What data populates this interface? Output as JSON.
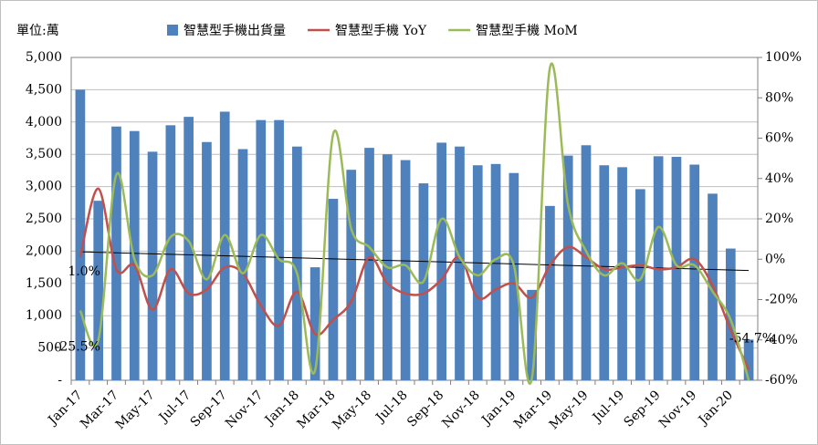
{
  "chart_data": {
    "type": "bar_line",
    "unit_label": "單位:萬",
    "categories": [
      "Jan-17",
      null,
      "Mar-17",
      null,
      "May-17",
      null,
      "Jul-17",
      null,
      "Sep-17",
      null,
      "Nov-17",
      null,
      "Jan-18",
      null,
      "Mar-18",
      null,
      "May-18",
      null,
      "Jul-18",
      null,
      "Sep-18",
      null,
      "Nov-18",
      null,
      "Jan-19",
      null,
      "Mar-19",
      null,
      "May-19",
      null,
      "Jul-19",
      null,
      "Sep-19",
      null,
      "Nov-19",
      null,
      "Jan-20",
      null
    ],
    "series": [
      {
        "name": "智慧型手機出貨量",
        "type": "bar",
        "color": "#4f81bd",
        "values": [
          4500,
          2780,
          3930,
          3860,
          3540,
          3950,
          4080,
          3690,
          4160,
          3580,
          4030,
          4030,
          3620,
          1750,
          2810,
          3260,
          3600,
          3500,
          3410,
          3050,
          3680,
          3620,
          3330,
          3350,
          3210,
          1400,
          2700,
          3480,
          3640,
          3330,
          3300,
          2960,
          3470,
          3460,
          3340,
          2890,
          2040,
          630
        ]
      },
      {
        "name": "智慧型手機 YoY",
        "type": "line",
        "axis": "y2",
        "color": "#c0504d",
        "values": [
          1.0,
          35,
          -5,
          -3,
          -25,
          -5,
          -17,
          -15,
          -4,
          -7,
          -23,
          -33,
          -16,
          -37,
          -30,
          -21,
          1,
          -12,
          -17,
          -17,
          -10,
          1,
          -19,
          -15,
          -12,
          -19,
          -3,
          6,
          1,
          -5,
          -4,
          -3,
          -5,
          -4,
          0,
          -13,
          -35,
          -54.7
        ],
        "value_labels": [
          "1.0%",
          null,
          null,
          null,
          null,
          null,
          null,
          null,
          null,
          null,
          null,
          null,
          null,
          null,
          null,
          null,
          null,
          null,
          null,
          null,
          null,
          null,
          null,
          null,
          null,
          null,
          null,
          null,
          null,
          null,
          null,
          null,
          null,
          null,
          null,
          null,
          null,
          "-54.7%"
        ]
      },
      {
        "name": "智慧型手機 MoM",
        "type": "line",
        "axis": "y2",
        "color": "#9bbb59",
        "values": [
          -25.5,
          -40,
          42,
          0,
          -8,
          11,
          9,
          -10,
          12,
          -7,
          12,
          0,
          -7,
          -55,
          62,
          15,
          6,
          -4,
          -3,
          -11,
          20,
          1,
          -8,
          0,
          -3,
          -59,
          95,
          27,
          4,
          -8,
          -2,
          -10,
          16,
          -3,
          -3,
          -16,
          -30,
          -60
        ],
        "value_labels": [
          "-25.5%",
          null,
          null,
          null,
          null,
          null,
          null,
          null,
          null,
          null,
          null,
          null,
          null,
          null,
          null,
          null,
          null,
          null,
          null,
          null,
          null,
          null,
          null,
          null,
          null,
          null,
          null,
          null,
          null,
          null,
          null,
          null,
          null,
          null,
          null,
          null,
          null,
          null
        ]
      }
    ],
    "trendline": {
      "color": "#000000",
      "values": [
        1990,
        1700
      ]
    },
    "ylim": [
      0,
      5000
    ],
    "yticks": [
      {
        "value": 0,
        "label": "-"
      },
      500,
      {
        "value": 1000,
        "label": "1,000"
      },
      {
        "value": 1500,
        "label": "1,500"
      },
      {
        "value": 2000,
        "label": "2,000"
      },
      {
        "value": 2500,
        "label": "2,500"
      },
      {
        "value": 3000,
        "label": "3,000"
      },
      {
        "value": 3500,
        "label": "3,500"
      },
      {
        "value": 4000,
        "label": "4,000"
      },
      {
        "value": 4500,
        "label": "4,500"
      },
      {
        "value": 5000,
        "label": "5,000"
      }
    ],
    "y2lim": [
      -60,
      100
    ],
    "y2ticks": [
      {
        "value": -60,
        "label": "-60%"
      },
      {
        "value": -40,
        "label": "-40%"
      },
      {
        "value": -20,
        "label": "-20%"
      },
      {
        "value": 0,
        "label": "0%"
      },
      {
        "value": 20,
        "label": "20%"
      },
      {
        "value": 40,
        "label": "40%"
      },
      {
        "value": 60,
        "label": "60%"
      },
      {
        "value": 80,
        "label": "80%"
      },
      {
        "value": 100,
        "label": "100%"
      }
    ],
    "grid": true
  }
}
